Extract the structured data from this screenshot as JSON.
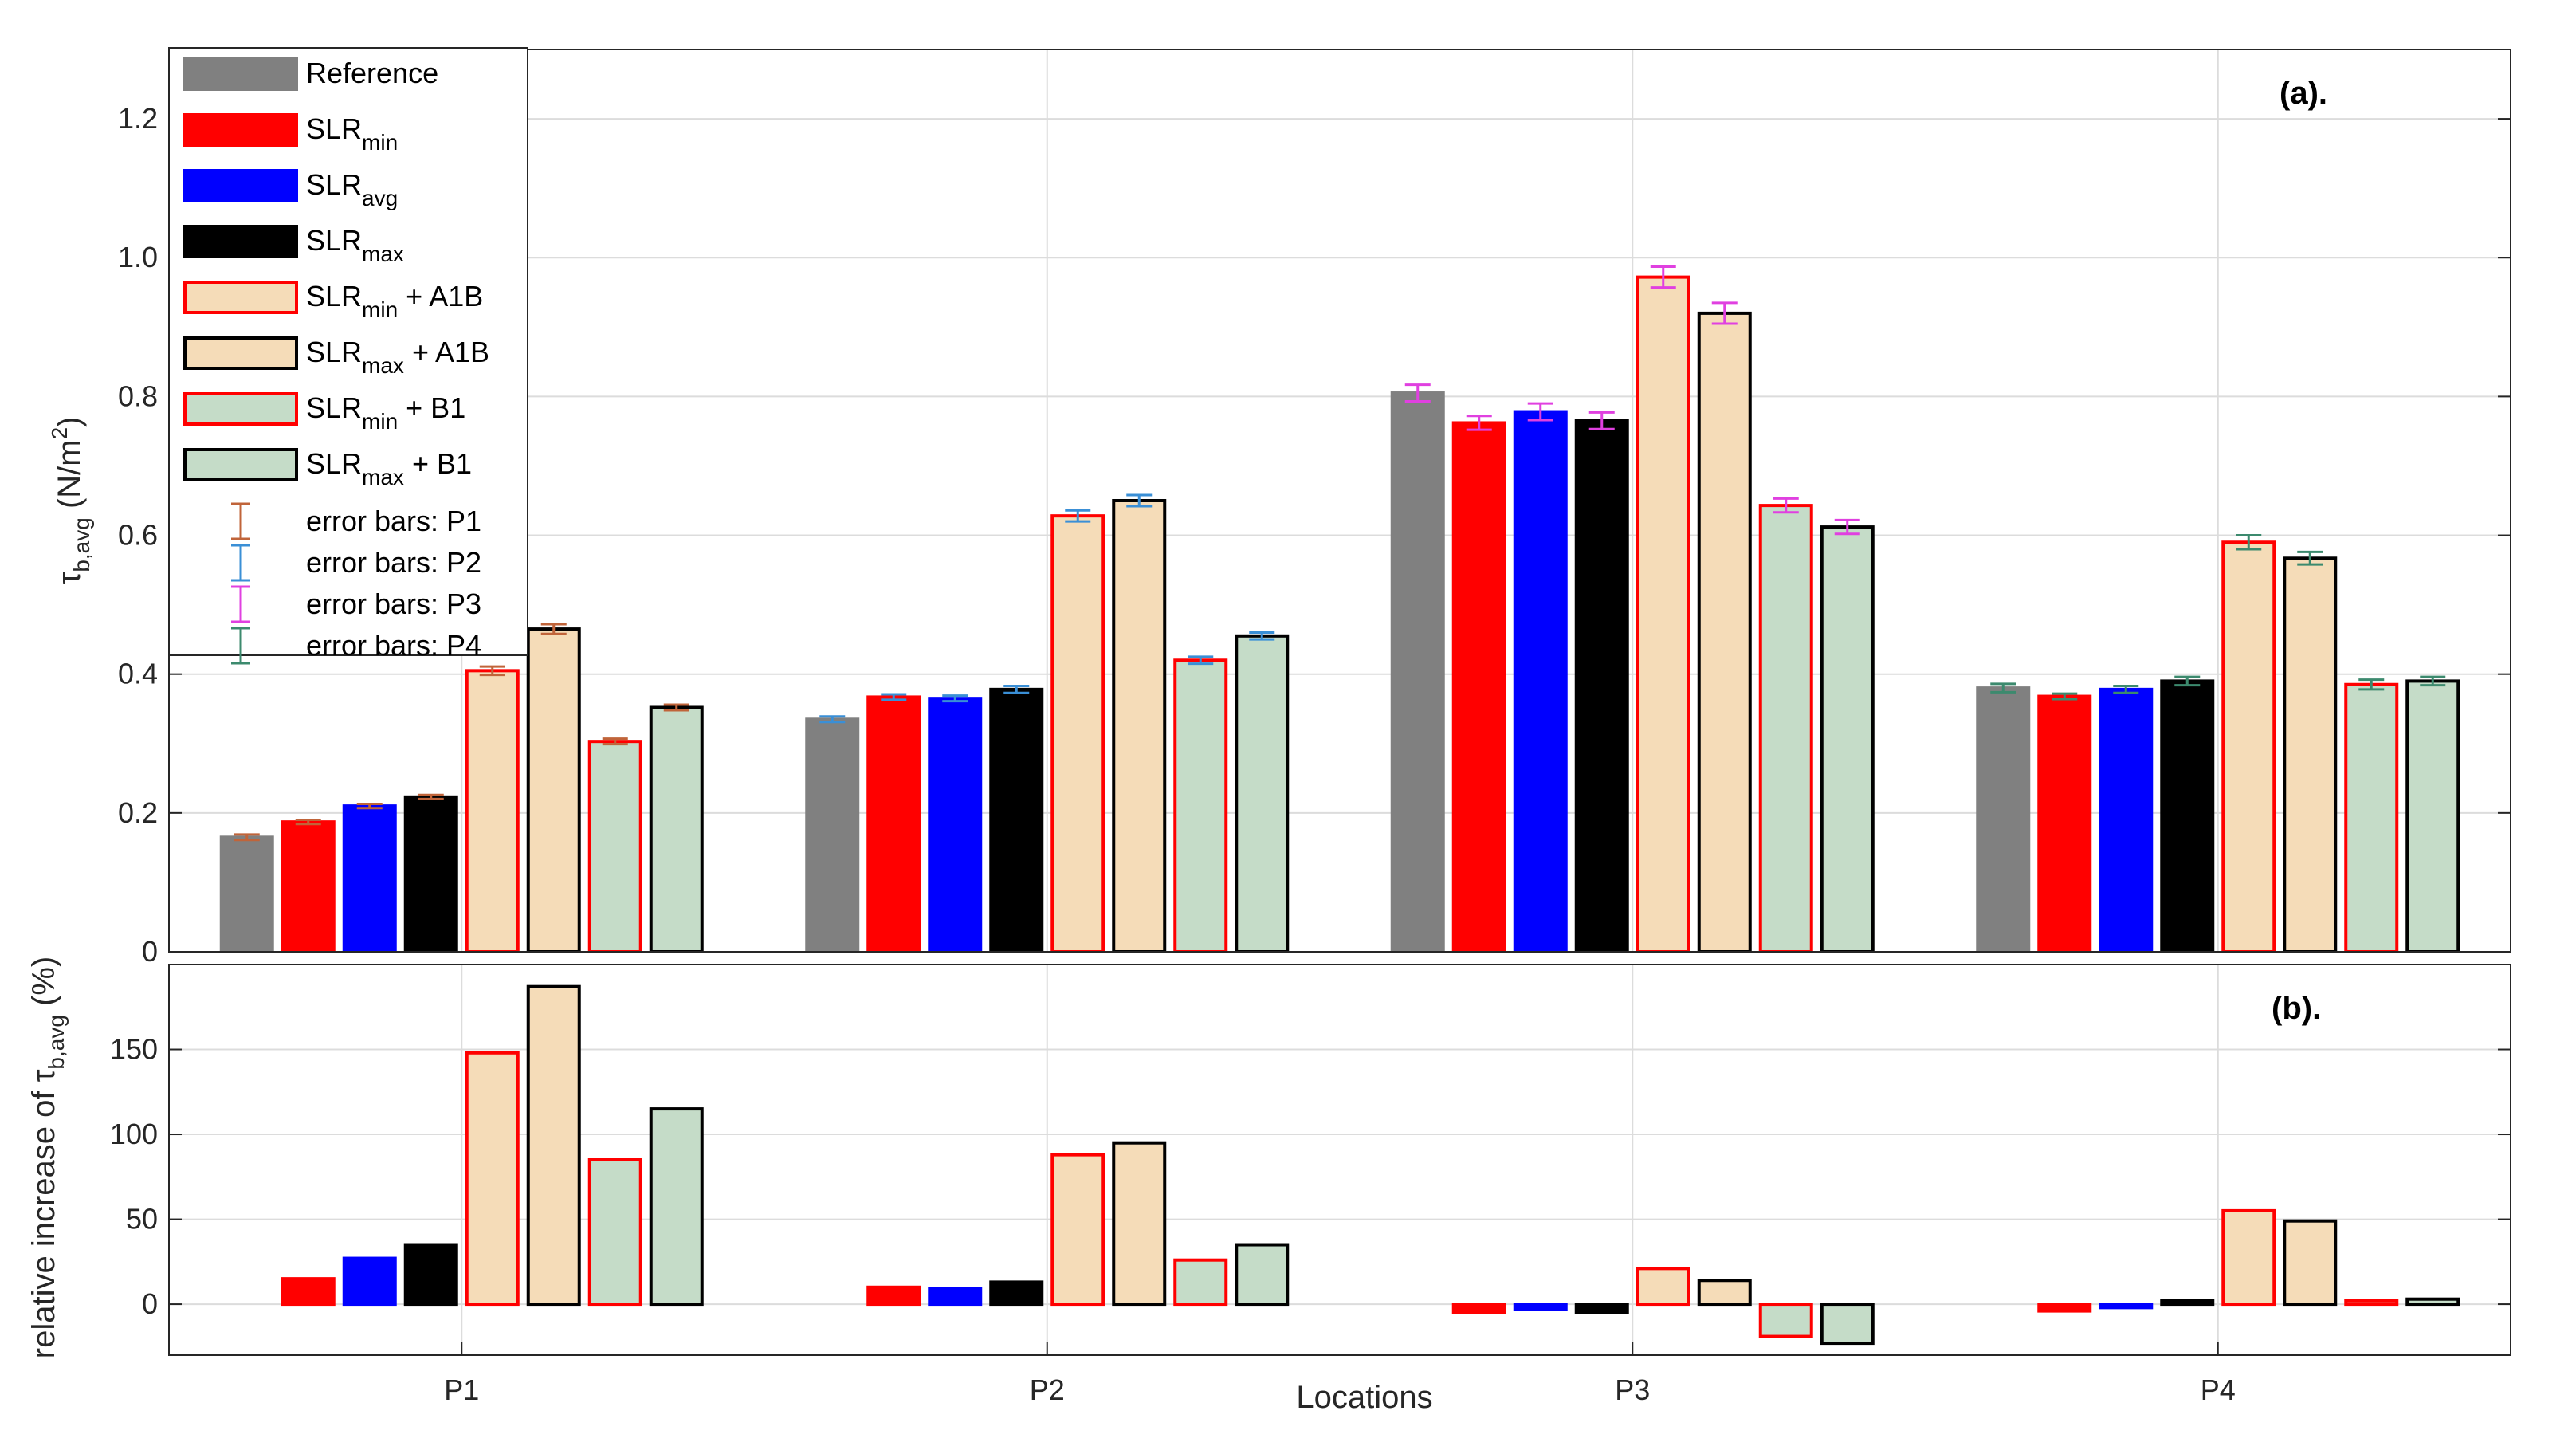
{
  "chart_data": [
    {
      "type": "bar",
      "panel_label": "(a).",
      "ylabel": {
        "main": "τ",
        "sub": "b,avg",
        "unit": " (N/m",
        "unit_sup": "2",
        "close": ")"
      },
      "xlabel": "",
      "ylim": [
        0,
        1.3
      ],
      "yticks": [
        0,
        0.2,
        0.4,
        0.6,
        0.8,
        1.0,
        1.2
      ],
      "ytick_labels": [
        "0",
        "0.2",
        "0.4",
        "0.6",
        "0.8",
        "1.0",
        "1.2"
      ],
      "grid": true,
      "legend_position": "top-left",
      "categories": [
        "P1",
        "P2",
        "P3",
        "P4"
      ],
      "error_bar_colors": [
        "#c0643a",
        "#3a8fd6",
        "#e040e0",
        "#3c8a6e"
      ],
      "series": [
        {
          "key": "ref",
          "values": [
            0.165,
            0.335,
            0.805,
            0.38
          ],
          "errors": [
            0.004,
            0.004,
            0.012,
            0.006
          ]
        },
        {
          "key": "slrmin",
          "values": [
            0.187,
            0.367,
            0.762,
            0.368
          ],
          "errors": [
            0.003,
            0.004,
            0.01,
            0.004
          ]
        },
        {
          "key": "slravg",
          "values": [
            0.21,
            0.365,
            0.778,
            0.378
          ],
          "errors": [
            0.003,
            0.004,
            0.012,
            0.005
          ]
        },
        {
          "key": "slrmax",
          "values": [
            0.223,
            0.378,
            0.765,
            0.39
          ],
          "errors": [
            0.003,
            0.005,
            0.012,
            0.006
          ]
        },
        {
          "key": "slrmin_a1b",
          "values": [
            0.405,
            0.628,
            0.972,
            0.59
          ],
          "errors": [
            0.006,
            0.008,
            0.015,
            0.01
          ]
        },
        {
          "key": "slrmax_a1b",
          "values": [
            0.465,
            0.65,
            0.92,
            0.567
          ],
          "errors": [
            0.007,
            0.008,
            0.015,
            0.009
          ]
        },
        {
          "key": "slrmin_b1",
          "values": [
            0.303,
            0.42,
            0.643,
            0.385
          ],
          "errors": [
            0.004,
            0.005,
            0.01,
            0.007
          ]
        },
        {
          "key": "slrmax_b1",
          "values": [
            0.352,
            0.455,
            0.612,
            0.39
          ],
          "errors": [
            0.004,
            0.005,
            0.01,
            0.006
          ]
        }
      ]
    },
    {
      "type": "bar",
      "panel_label": "(b).",
      "ylabel": {
        "main": "relative increase of τ",
        "sub": "b,avg",
        "unit": " (%)"
      },
      "xlabel": "Locations",
      "ylim": [
        -30,
        200
      ],
      "yticks": [
        0,
        50,
        100,
        150
      ],
      "ytick_labels": [
        "0",
        "50",
        "100",
        "150"
      ],
      "grid": true,
      "categories": [
        "P1",
        "P2",
        "P3",
        "P4"
      ],
      "series": [
        {
          "key": "slrmin",
          "values": [
            15,
            10,
            -5,
            -4
          ]
        },
        {
          "key": "slravg",
          "values": [
            27,
            9,
            -3,
            -2
          ]
        },
        {
          "key": "slrmax",
          "values": [
            35,
            13,
            -5,
            2
          ]
        },
        {
          "key": "slrmin_a1b",
          "values": [
            148,
            88,
            21,
            55
          ]
        },
        {
          "key": "slrmax_a1b",
          "values": [
            187,
            95,
            14,
            49
          ]
        },
        {
          "key": "slrmin_b1",
          "values": [
            85,
            26,
            -19,
            2
          ]
        },
        {
          "key": "slrmax_b1",
          "values": [
            115,
            35,
            -23,
            3
          ]
        }
      ]
    }
  ],
  "series_styles": {
    "ref": {
      "fill": "#808080",
      "edge": "#808080"
    },
    "slrmin": {
      "fill": "#ff0000",
      "edge": "#ff0000"
    },
    "slravg": {
      "fill": "#0000ff",
      "edge": "#0000ff"
    },
    "slrmax": {
      "fill": "#000000",
      "edge": "#000000"
    },
    "slrmin_a1b": {
      "fill": "#f5dcb8",
      "edge": "#ff0000"
    },
    "slrmax_a1b": {
      "fill": "#f5dcb8",
      "edge": "#000000"
    },
    "slrmin_b1": {
      "fill": "#c5dcc8",
      "edge": "#ff0000"
    },
    "slrmax_b1": {
      "fill": "#c5dcc8",
      "edge": "#000000"
    }
  },
  "legend": {
    "entries": [
      {
        "key": "ref",
        "label": "Reference",
        "sub": "",
        "suffix": ""
      },
      {
        "key": "slrmin",
        "label": "SLR",
        "sub": "min",
        "suffix": ""
      },
      {
        "key": "slravg",
        "label": "SLR",
        "sub": "avg",
        "suffix": ""
      },
      {
        "key": "slrmax",
        "label": "SLR",
        "sub": "max",
        "suffix": ""
      },
      {
        "key": "slrmin_a1b",
        "label": "SLR",
        "sub": "min",
        "suffix": " + A1B"
      },
      {
        "key": "slrmax_a1b",
        "label": "SLR",
        "sub": "max",
        "suffix": " + A1B"
      },
      {
        "key": "slrmin_b1",
        "label": "SLR",
        "sub": "min",
        "suffix": " + B1"
      },
      {
        "key": "slrmax_b1",
        "label": "SLR",
        "sub": "max",
        "suffix": " + B1"
      }
    ],
    "error_entries": [
      {
        "label": "error bars: P1",
        "color": "#c0643a"
      },
      {
        "label": "error bars: P2",
        "color": "#3a8fd6"
      },
      {
        "label": "error bars: P3",
        "color": "#e040e0"
      },
      {
        "label": "error bars: P4",
        "color": "#3c8a6e"
      }
    ]
  }
}
